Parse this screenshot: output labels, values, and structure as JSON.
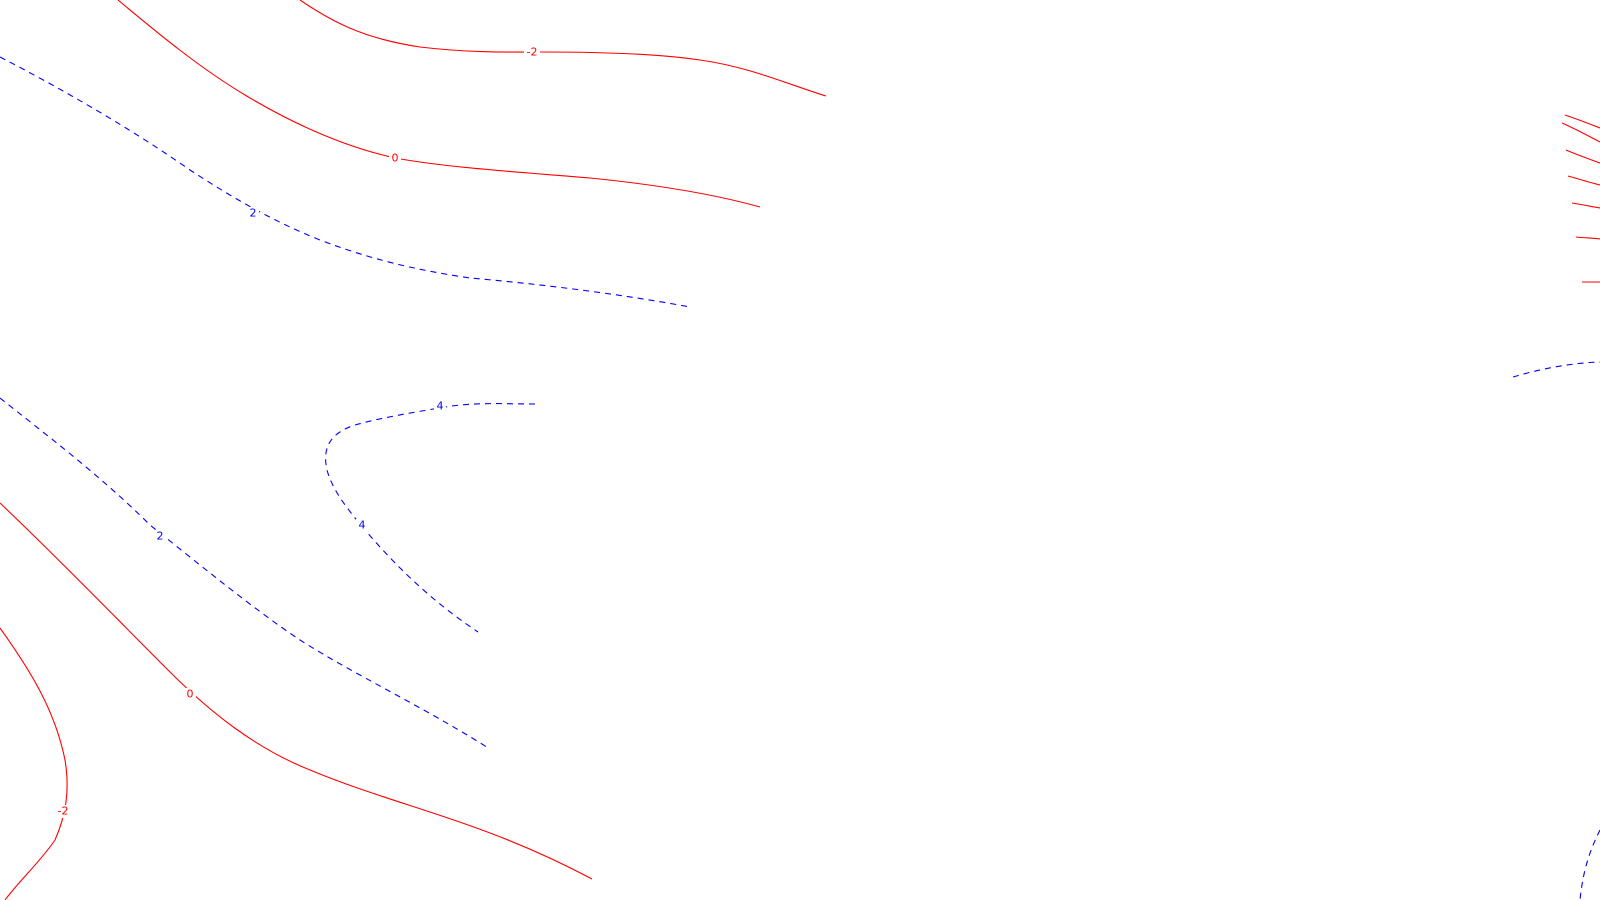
{
  "map": {
    "colors": {
      "negative_or_zero": "#ff0000",
      "positive": "#0000ff",
      "background": "#ffffff"
    },
    "contour_labels": [
      {
        "id": "c-neg2-top",
        "text": "-2",
        "color": "#ff0000"
      },
      {
        "id": "c-0-top",
        "text": "0",
        "color": "#ff0000"
      },
      {
        "id": "c-2-top",
        "text": "2",
        "color": "#0000ff"
      },
      {
        "id": "c-4-a",
        "text": "4",
        "color": "#0000ff"
      },
      {
        "id": "c-4-b",
        "text": "4",
        "color": "#0000ff"
      },
      {
        "id": "c-2-bottom",
        "text": "2",
        "color": "#0000ff"
      },
      {
        "id": "c-0-bottom",
        "text": "0",
        "color": "#ff0000"
      },
      {
        "id": "c-neg2-bottom",
        "text": "-2",
        "color": "#ff0000"
      }
    ]
  }
}
